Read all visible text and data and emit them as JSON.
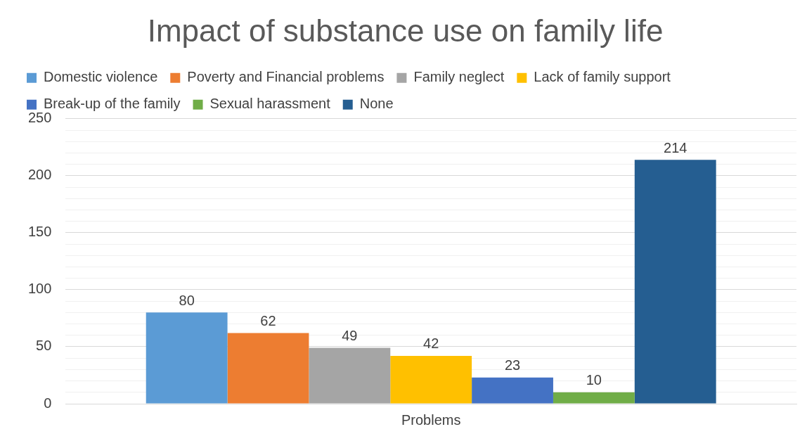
{
  "chart_data": {
    "type": "bar",
    "title": "Impact of substance use on family life",
    "categories": [
      "Problems"
    ],
    "series": [
      {
        "name": "Domestic violence",
        "color": "#5b9bd5",
        "values": [
          80
        ]
      },
      {
        "name": "Poverty and Financial problems",
        "color": "#ed7d31",
        "values": [
          62
        ]
      },
      {
        "name": "Family neglect",
        "color": "#a5a5a5",
        "values": [
          49
        ]
      },
      {
        "name": "Lack of family support",
        "color": "#ffc000",
        "values": [
          42
        ]
      },
      {
        "name": "Break-up of the family",
        "color": "#4472c4",
        "values": [
          23
        ]
      },
      {
        "name": "Sexual harassment",
        "color": "#70ad47",
        "values": [
          10
        ]
      },
      {
        "name": "None",
        "color": "#255e91",
        "values": [
          214
        ]
      }
    ],
    "ylim": [
      0,
      250
    ],
    "yticks": [
      0,
      {
        "value": 10,
        "label": null
      },
      {
        "value": 20,
        "label": null
      },
      {
        "value": 30,
        "label": null
      },
      {
        "value": 40,
        "label": null
      },
      50,
      {
        "value": 60,
        "label": null
      },
      {
        "value": 70,
        "label": null
      },
      {
        "value": 80,
        "label": null
      },
      {
        "value": 90,
        "label": null
      },
      100,
      {
        "value": 110,
        "label": null
      },
      {
        "value": 120,
        "label": null
      },
      {
        "value": 130,
        "label": null
      },
      {
        "value": 140,
        "label": null
      },
      150,
      {
        "value": 160,
        "label": null
      },
      {
        "value": 170,
        "label": null
      },
      {
        "value": 180,
        "label": null
      },
      {
        "value": 190,
        "label": null
      },
      200,
      {
        "value": 210,
        "label": null
      },
      {
        "value": 220,
        "label": null
      },
      {
        "value": 230,
        "label": null
      },
      {
        "value": 240,
        "label": null
      },
      250
    ],
    "grid": "y",
    "legend": "top",
    "data_labels": true
  }
}
